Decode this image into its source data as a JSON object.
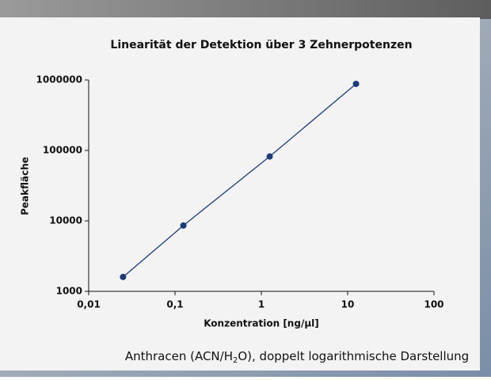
{
  "chart_data": {
    "type": "line",
    "title": "Linearität der Detektion über 3 Zehnerpotenzen",
    "x_label": "Konzentration [ng/µl]",
    "y_label": "Peakfläche",
    "x": [
      0.025,
      0.125,
      1.25,
      12.5
    ],
    "values": [
      1600,
      8600,
      82000,
      880000
    ],
    "color": "#1b3a7a",
    "xscale": "log",
    "yscale": "log",
    "xlim": [
      0.01,
      100
    ],
    "xticks": [
      {
        "value": 0.01,
        "label": "0,01"
      },
      {
        "value": 0.1,
        "label": "0,1"
      },
      1,
      10,
      100
    ],
    "ylim": [
      1000,
      1000000
    ],
    "yticks": [
      1000,
      10000,
      100000,
      1000000
    ],
    "grid": false
  },
  "caption": {
    "before": "Anthracen (ACN/H",
    "sub": "2",
    "after": "O), doppelt logarithmische Darstellung"
  }
}
